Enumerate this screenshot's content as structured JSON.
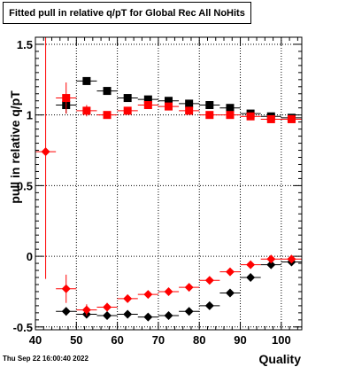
{
  "title": "Fitted pull in relative q/pT for Global Rec All NoHits",
  "footer": "Thu Sep 22 16:00:40 2022",
  "chart_data": {
    "type": "scatter",
    "title": "Fitted pull in relative q/pT for Global Rec All NoHits",
    "xlabel": "Quality",
    "ylabel": "pull in relative q/pT",
    "xlim": [
      40,
      105
    ],
    "ylim": [
      -0.52,
      1.55
    ],
    "grid": true,
    "xticks": [
      40,
      50,
      60,
      70,
      80,
      90,
      100
    ],
    "yticks": [
      -0.5,
      0,
      0.5,
      1,
      1.5
    ],
    "series": [
      {
        "marker": "square",
        "color": "#000000",
        "x": [
          47.5,
          52.5,
          57.5,
          62.5,
          67.5,
          72.5,
          77.5,
          82.5,
          87.5,
          92.5,
          97.5,
          102.5
        ],
        "y": [
          1.07,
          1.24,
          1.17,
          1.12,
          1.11,
          1.1,
          1.08,
          1.07,
          1.05,
          1.01,
          0.99,
          0.98
        ],
        "yerr": [
          0.06,
          0.02,
          0.02,
          0.02,
          0.01,
          0.01,
          0.01,
          0.01,
          0.01,
          0.01,
          0.01,
          0.01
        ]
      },
      {
        "marker": "square",
        "color": "#ff0000",
        "x": [
          47.5,
          52.5,
          57.5,
          62.5,
          67.5,
          72.5,
          77.5,
          82.5,
          87.5,
          92.5,
          97.5,
          102.5
        ],
        "y": [
          1.12,
          1.03,
          1.0,
          1.03,
          1.07,
          1.06,
          1.03,
          1.0,
          1.0,
          0.99,
          0.97,
          0.97
        ],
        "yerr": [
          0.11,
          0.04,
          0.02,
          0.02,
          0.02,
          0.02,
          0.01,
          0.01,
          0.01,
          0.01,
          0.01,
          0.01
        ]
      },
      {
        "marker": "diamond",
        "color": "#000000",
        "x": [
          47.5,
          52.5,
          57.5,
          62.5,
          67.5,
          72.5,
          77.5,
          82.5,
          87.5,
          92.5,
          97.5,
          102.5
        ],
        "y": [
          -0.39,
          -0.41,
          -0.42,
          -0.41,
          -0.43,
          -0.42,
          -0.39,
          -0.35,
          -0.26,
          -0.15,
          -0.06,
          -0.04
        ],
        "yerr": [
          0.03,
          0.02,
          0.02,
          0.01,
          0.01,
          0.01,
          0.01,
          0.01,
          0.01,
          0.01,
          0.01,
          0.01
        ]
      },
      {
        "marker": "diamond",
        "color": "#ff0000",
        "x": [
          42.5,
          47.5,
          52.5,
          57.5,
          62.5,
          67.5,
          72.5,
          77.5,
          82.5,
          87.5,
          92.5,
          97.5,
          102.5
        ],
        "y": [
          0.74,
          -0.23,
          -0.38,
          -0.36,
          -0.3,
          -0.27,
          -0.25,
          -0.22,
          -0.17,
          -0.11,
          -0.06,
          -0.02,
          -0.02
        ],
        "yerr": [
          0.9,
          0.1,
          0.04,
          0.03,
          0.02,
          0.02,
          0.02,
          0.02,
          0.01,
          0.01,
          0.01,
          0.01,
          0.01
        ]
      }
    ]
  }
}
